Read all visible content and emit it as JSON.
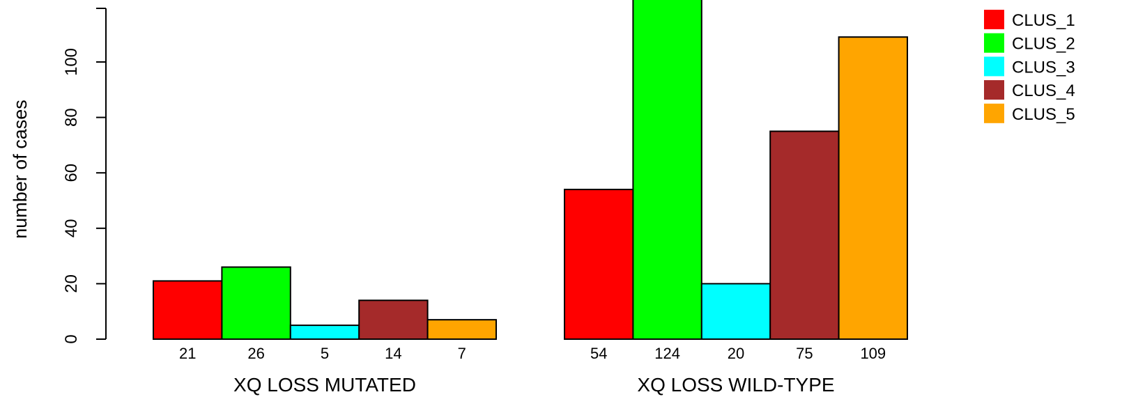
{
  "chart_data": {
    "type": "bar",
    "xlabel": "",
    "ylabel": "number of cases",
    "ylim": [
      0,
      120
    ],
    "yticks": [
      0,
      20,
      40,
      60,
      80,
      100
    ],
    "groups": [
      "XQ LOSS MUTATED",
      "XQ LOSS WILD-TYPE"
    ],
    "series": [
      {
        "name": "CLUS_1",
        "color": "#ff0000",
        "values": [
          21,
          54
        ]
      },
      {
        "name": "CLUS_2",
        "color": "#00ff00",
        "values": [
          26,
          124
        ]
      },
      {
        "name": "CLUS_3",
        "color": "#00ffff",
        "values": [
          5,
          20
        ]
      },
      {
        "name": "CLUS_4",
        "color": "#a52a2a",
        "values": [
          14,
          75
        ]
      },
      {
        "name": "CLUS_5",
        "color": "#ffa500",
        "values": [
          7,
          109
        ]
      }
    ],
    "bar_labels": [
      [
        "21",
        "26",
        "5",
        "14",
        "7"
      ],
      [
        "54",
        "124",
        "20",
        "75",
        "109"
      ]
    ],
    "legend_position": "top-right",
    "grid": false
  }
}
